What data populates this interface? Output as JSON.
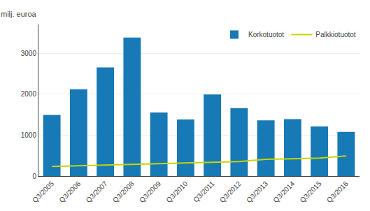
{
  "chart_data": {
    "type": "bar",
    "ylabel": "milj. euroa",
    "categories": [
      "Q3/2005",
      "Q3/2006",
      "Q3/2007",
      "Q3/2008",
      "Q3/2009",
      "Q3/2010",
      "Q3/2011",
      "Q3/2012",
      "Q3/2013",
      "Q3/2014",
      "Q3/2015",
      "Q3/2016"
    ],
    "series": [
      {
        "name": "Korkotuotot",
        "type": "bar",
        "color": "#1779B5",
        "values": [
          1490,
          2120,
          2650,
          3380,
          1550,
          1380,
          1990,
          1660,
          1360,
          1390,
          1210,
          1080
        ]
      },
      {
        "name": "Palkkiotuotot",
        "type": "line",
        "color": "#C8D400",
        "values": [
          235,
          250,
          265,
          285,
          300,
          315,
          335,
          355,
          410,
          420,
          440,
          490
        ]
      }
    ],
    "ylim": [
      0,
      3700
    ],
    "yticks": [
      0,
      1000,
      2000,
      3000
    ],
    "grid": true,
    "legend": "upper right"
  }
}
